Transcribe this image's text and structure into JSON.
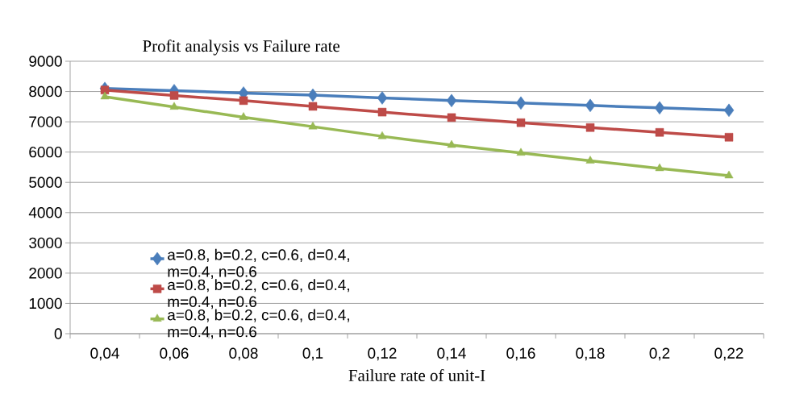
{
  "chart_data": {
    "type": "line",
    "title": "Profit analysis vs Failure rate",
    "xlabel": "Failure rate of unit-I",
    "categories": [
      "0,04",
      "0,06",
      "0,08",
      "0,1",
      "0,12",
      "0,14",
      "0,16",
      "0,18",
      "0,2",
      "0,22"
    ],
    "series": [
      {
        "name": "a=0.8, b=0.2, c=0.6, d=0.4, m=0.4, n=0.6",
        "color": "#4a7ebb",
        "marker": "diamond",
        "values": [
          8100,
          8030,
          7950,
          7880,
          7790,
          7700,
          7620,
          7540,
          7460,
          7380
        ]
      },
      {
        "name": "a=0.8, b=0.2, c=0.6, d=0.4, m=0.4, n=0.6",
        "color": "#be4b48",
        "marker": "square",
        "values": [
          8050,
          7870,
          7700,
          7510,
          7320,
          7140,
          6970,
          6810,
          6650,
          6490
        ]
      },
      {
        "name": "a=0.8, b=0.2, c=0.6, d=0.4, m=0.4, n=0.6",
        "color": "#98b954",
        "marker": "triangle",
        "values": [
          7830,
          7490,
          7150,
          6840,
          6520,
          6230,
          5970,
          5710,
          5460,
          5220
        ]
      }
    ],
    "ylim": [
      0,
      9000
    ],
    "yticks": [
      0,
      1000,
      2000,
      3000,
      4000,
      5000,
      6000,
      7000,
      8000,
      9000
    ],
    "grid": "y",
    "legend": "bottom left"
  }
}
